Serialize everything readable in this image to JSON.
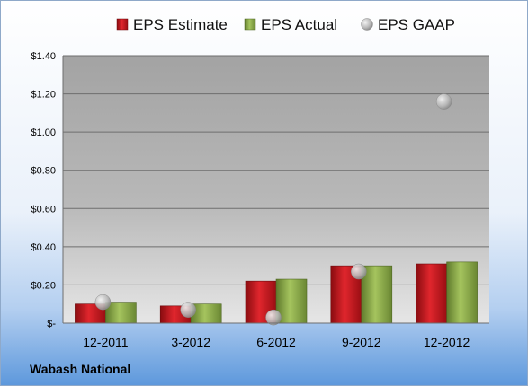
{
  "chart_data": {
    "type": "bar",
    "categories": [
      "12-2011",
      "3-2012",
      "6-2012",
      "9-2012",
      "12-2012"
    ],
    "series": [
      {
        "name": "EPS Estimate",
        "kind": "bar",
        "color": "#c0141b",
        "values": [
          0.1,
          0.09,
          0.22,
          0.3,
          0.31
        ]
      },
      {
        "name": "EPS Actual",
        "kind": "bar",
        "color": "#8dad4a",
        "values": [
          0.11,
          0.1,
          0.23,
          0.3,
          0.32
        ]
      },
      {
        "name": "EPS GAAP",
        "kind": "scatter",
        "color": "#b0b0b0",
        "values": [
          0.11,
          0.07,
          0.03,
          0.27,
          1.16
        ]
      }
    ],
    "ylim": [
      0,
      1.4
    ],
    "yticks": [
      0,
      0.2,
      0.4,
      0.6,
      0.8,
      1.0,
      1.2,
      1.4
    ],
    "ytick_labels": [
      "$-",
      "$0.20",
      "$0.40",
      "$0.60",
      "$0.80",
      "$1.00",
      "$1.20",
      "$1.40"
    ],
    "grid": true,
    "legend_position": "top"
  },
  "footer": {
    "company": "Wabash National"
  },
  "colors": {
    "background_top": "#ffffff",
    "background_bottom": "#5d98dc",
    "plot_top": "#a3a3a3",
    "plot_bottom": "#e6e6e6"
  }
}
